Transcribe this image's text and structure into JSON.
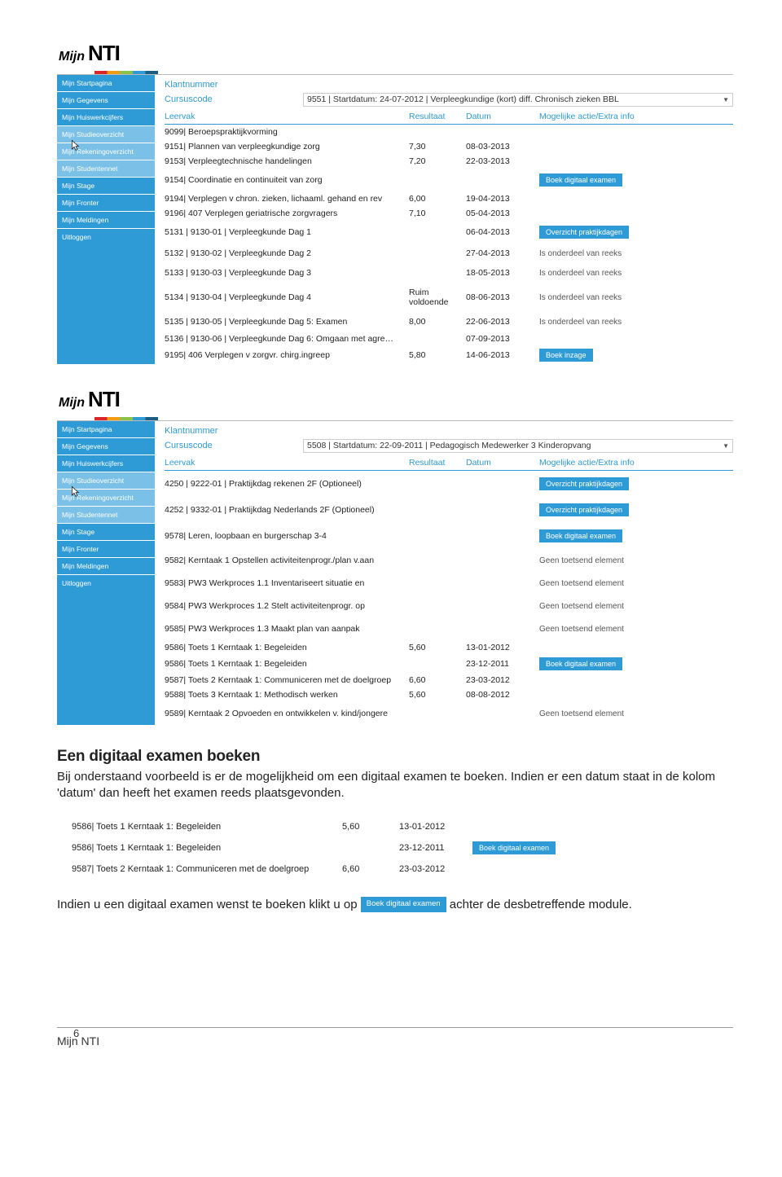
{
  "logo": {
    "mijn": "Mijn",
    "nti": "NTI"
  },
  "nav": [
    "Mijn Startpagina",
    "Mijn Gegevens",
    "Mijn Huiswerkcijfers",
    "Mijn Studieoverzicht",
    "Mijn Rekeningoverzicht",
    "Mijn Studentennet",
    "Mijn Stage",
    "Mijn Fronter",
    "Mijn Meldingen",
    "Uitloggen"
  ],
  "panel1": {
    "meta": {
      "klant": "Klantnummer",
      "code": "Cursuscode",
      "select": "9551 | Startdatum: 24-07-2012 | Verpleegkundige (kort) diff. Chronisch zieken BBL"
    },
    "head": {
      "leervak": "Leervak",
      "resultaat": "Resultaat",
      "datum": "Datum",
      "actie": "Mogelijke actie/Extra info"
    },
    "rows": [
      {
        "l": "9099| Beroepspraktijkvorming",
        "r": "",
        "d": "",
        "a": ""
      },
      {
        "l": "9151| Plannen van verpleegkundige zorg",
        "r": "7,30",
        "d": "08-03-2013",
        "a": ""
      },
      {
        "l": "9153| Verpleegtechnische handelingen",
        "r": "7,20",
        "d": "22-03-2013",
        "a": ""
      },
      {
        "l": "9154| Coordinatie en continuiteit van zorg",
        "r": "",
        "d": "",
        "a": "Boek digitaal examen",
        "btn": true,
        "tall": true
      },
      {
        "l": "9194| Verplegen v chron. zieken, lichaaml. gehand en rev",
        "r": "6,00",
        "d": "19-04-2013",
        "a": ""
      },
      {
        "l": "9196| 407 Verplegen geriatrische zorgvragers",
        "r": "7,10",
        "d": "05-04-2013",
        "a": ""
      },
      {
        "l": "5131 | 9130-01 | Verpleegkunde Dag 1",
        "r": "",
        "d": "06-04-2013",
        "a": "Overzicht praktijkdagen",
        "btn": true,
        "tall": true
      },
      {
        "l": "5132 | 9130-02 | Verpleegkunde Dag 2",
        "r": "",
        "d": "27-04-2013",
        "a": "Is onderdeel van reeks",
        "plain": true,
        "tall": true
      },
      {
        "l": "5133 | 9130-03 | Verpleegkunde Dag 3",
        "r": "",
        "d": "18-05-2013",
        "a": "Is onderdeel van reeks",
        "plain": true,
        "tall": true
      },
      {
        "l": "5134 | 9130-04 | Verpleegkunde Dag 4",
        "r": "Ruim voldoende",
        "d": "08-06-2013",
        "a": "Is onderdeel van reeks",
        "plain": true,
        "tall": true
      },
      {
        "l": "5135 | 9130-05 | Verpleegkunde Dag 5: Examen",
        "r": "8,00",
        "d": "22-06-2013",
        "a": "Is onderdeel van reeks",
        "plain": true,
        "tall": true
      },
      {
        "l": "5136 | 9130-06 | Verpleegkunde Dag 6: Omgaan met agre…",
        "r": "",
        "d": "07-09-2013",
        "a": ""
      },
      {
        "l": "9195| 406 Verplegen v zorgvr. chirg.ingreep",
        "r": "5,80",
        "d": "14-06-2013",
        "a": "Boek inzage",
        "btn": true
      }
    ]
  },
  "panel2": {
    "meta": {
      "klant": "Klantnummer",
      "code": "Cursuscode",
      "select": "5508 | Startdatum: 22-09-2011 | Pedagogisch Medewerker 3 Kinderopvang"
    },
    "head": {
      "leervak": "Leervak",
      "resultaat": "Resultaat",
      "datum": "Datum",
      "actie": "Mogelijke actie/Extra info"
    },
    "rows": [
      {
        "l": "4250 | 9222-01 | Praktijkdag rekenen 2F (Optioneel)",
        "r": "",
        "d": "",
        "a": "Overzicht praktijkdagen",
        "btn": true,
        "vtall": true
      },
      {
        "l": "4252 | 9332-01 | Praktijkdag Nederlands 2F (Optioneel)",
        "r": "",
        "d": "",
        "a": "Overzicht praktijkdagen",
        "btn": true,
        "vtall": true
      },
      {
        "l": "9578| Leren, loopbaan en burgerschap 3-4",
        "r": "",
        "d": "",
        "a": "Boek digitaal examen",
        "btn": true,
        "vtall": true
      },
      {
        "l": "9582| Kerntaak 1 Opstellen activiteitenprogr./plan v.aan",
        "r": "",
        "d": "",
        "a": "Geen toetsend element",
        "plain": true,
        "vtall": true
      },
      {
        "l": "9583| PW3 Werkproces 1.1 Inventariseert situatie en",
        "r": "",
        "d": "",
        "a": "Geen toetsend element",
        "plain": true,
        "vtall": true
      },
      {
        "l": "9584| PW3 Werkproces 1.2 Stelt activiteitenprogr. op",
        "r": "",
        "d": "",
        "a": "Geen toetsend element",
        "plain": true,
        "vtall": true
      },
      {
        "l": "9585| PW3 Werkproces 1.3 Maakt plan van aanpak",
        "r": "",
        "d": "",
        "a": "Geen toetsend element",
        "plain": true,
        "vtall": true
      },
      {
        "l": "9586| Toets 1 Kerntaak 1: Begeleiden",
        "r": "5,60",
        "d": "13-01-2012",
        "a": ""
      },
      {
        "l": "9586| Toets 1 Kerntaak 1: Begeleiden",
        "r": "",
        "d": "23-12-2011",
        "a": "Boek digitaal examen",
        "btn": true
      },
      {
        "l": "9587| Toets 2 Kerntaak 1: Communiceren met de doelgroep",
        "r": "6,60",
        "d": "23-03-2012",
        "a": ""
      },
      {
        "l": "9588| Toets 3 Kerntaak 1: Methodisch werken",
        "r": "5,60",
        "d": "08-08-2012",
        "a": ""
      },
      {
        "l": "9589| Kerntaak 2 Opvoeden en ontwikkelen v. kind/jongere",
        "r": "",
        "d": "",
        "a": "Geen toetsend element",
        "plain": true,
        "vtall": true
      }
    ]
  },
  "section": {
    "heading": "Een digitaal examen boeken",
    "para": "Bij onderstaand voorbeeld is er de mogelijkheid om een digitaal examen te boeken. Indien er een datum staat in de kolom 'datum' dan heeft het examen reeds plaatsgevonden."
  },
  "snippet": [
    {
      "l": "9586| Toets 1 Kerntaak 1: Begeleiden",
      "r": "5,60",
      "d": "13-01-2012",
      "a": ""
    },
    {
      "l": "9586| Toets 1 Kerntaak 1: Begeleiden",
      "r": "",
      "d": "23-12-2011",
      "a": "Boek digitaal examen",
      "btn": true
    },
    {
      "l": "9587| Toets 2 Kerntaak 1: Communiceren met de doelgroep",
      "r": "6,60",
      "d": "23-03-2012",
      "a": ""
    }
  ],
  "final": {
    "t1": "Indien u een digitaal examen wenst te boeken klikt u op",
    "btn": "Boek digitaal examen",
    "t2": "achter de desbetreffende module."
  },
  "footer": {
    "num": "6",
    "title": "Mijn NTI"
  }
}
